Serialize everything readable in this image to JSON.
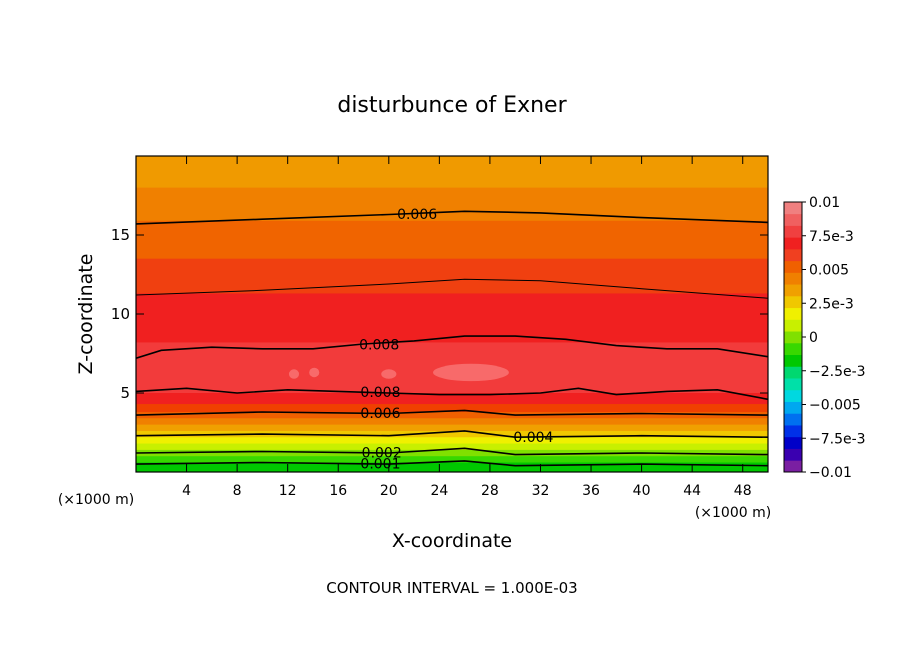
{
  "chart_data": {
    "type": "heatmap",
    "title": "disturbunce of Exner",
    "xlabel": "X-coordinate",
    "ylabel": "Z-coordinate",
    "x_unit_left": "(×1000 m)",
    "x_unit_right": "(×1000 m)",
    "footer": "CONTOUR INTERVAL = 1.000E-03",
    "xlim": [
      0,
      50
    ],
    "ylim": [
      0,
      20
    ],
    "x_ticks": [
      {
        "value": 4,
        "label": "4"
      },
      {
        "value": 8,
        "label": "8"
      },
      {
        "value": 12,
        "label": "12"
      },
      {
        "value": 16,
        "label": "16"
      },
      {
        "value": 20,
        "label": "20"
      },
      {
        "value": 24,
        "label": "24"
      },
      {
        "value": 28,
        "label": "28"
      },
      {
        "value": 32,
        "label": "32"
      },
      {
        "value": 36,
        "label": "36"
      },
      {
        "value": 40,
        "label": "40"
      },
      {
        "value": 44,
        "label": "44"
      },
      {
        "value": 48,
        "label": "48"
      }
    ],
    "y_ticks": [
      {
        "value": 5,
        "label": "5"
      },
      {
        "value": 10,
        "label": "10"
      },
      {
        "value": 15,
        "label": "15"
      }
    ],
    "colorbar": {
      "range": [
        -0.01,
        0.01
      ],
      "labels": [
        {
          "value": 0.01,
          "label": "0.01"
        },
        {
          "value": 0.0075,
          "label": "7.5e-3"
        },
        {
          "value": 0.005,
          "label": "0.005"
        },
        {
          "value": 0.0025,
          "label": "2.5e-3"
        },
        {
          "value": 0,
          "label": "0"
        },
        {
          "value": -0.0025,
          "label": "−2.5e-3"
        },
        {
          "value": -0.005,
          "label": "−0.005"
        },
        {
          "value": -0.0075,
          "label": "−7.5e-3"
        },
        {
          "value": -0.01,
          "label": "−0.01"
        }
      ],
      "colors": [
        "#7a1fa2",
        "#3a00b0",
        "#0000c8",
        "#0030e8",
        "#0070f0",
        "#00a8f0",
        "#00d8e0",
        "#00e0a8",
        "#00d870",
        "#00c800",
        "#38d800",
        "#80e000",
        "#c8f000",
        "#f0f000",
        "#f0c800",
        "#f0a000",
        "#f08000",
        "#f06000",
        "#f04020",
        "#f02020",
        "#f04040",
        "#f06060",
        "#f08080"
      ]
    },
    "series": [
      {
        "level": 0.006,
        "label": "0.006",
        "label_x": 20.5,
        "points": [
          [
            0,
            15.7
          ],
          [
            10,
            16.0
          ],
          [
            20,
            16.3
          ],
          [
            26,
            16.5
          ],
          [
            32,
            16.4
          ],
          [
            40,
            16.1
          ],
          [
            50,
            15.8
          ]
        ]
      },
      {
        "level": 0.007,
        "label": "",
        "points": [
          [
            0,
            11.2
          ],
          [
            10,
            11.5
          ],
          [
            20,
            11.9
          ],
          [
            26,
            12.2
          ],
          [
            32,
            12.1
          ],
          [
            40,
            11.6
          ],
          [
            50,
            11.0
          ]
        ]
      },
      {
        "level": 0.008,
        "label": "0.008",
        "label_x": 17.5,
        "points": [
          [
            0,
            7.2
          ],
          [
            2,
            7.7
          ],
          [
            6,
            7.9
          ],
          [
            10,
            7.8
          ],
          [
            14,
            7.8
          ],
          [
            18,
            8.1
          ],
          [
            22,
            8.3
          ],
          [
            26,
            8.6
          ],
          [
            30,
            8.6
          ],
          [
            34,
            8.4
          ],
          [
            38,
            8.0
          ],
          [
            42,
            7.8
          ],
          [
            46,
            7.8
          ],
          [
            50,
            7.3
          ]
        ]
      },
      {
        "level": 0.008,
        "label": "0.008",
        "label_x": 17.6,
        "points": [
          [
            0,
            5.1
          ],
          [
            4,
            5.3
          ],
          [
            8,
            5.0
          ],
          [
            12,
            5.2
          ],
          [
            16,
            5.1
          ],
          [
            20,
            5.0
          ],
          [
            24,
            4.9
          ],
          [
            28,
            4.9
          ],
          [
            32,
            5.0
          ],
          [
            35,
            5.3
          ],
          [
            38,
            4.9
          ],
          [
            42,
            5.1
          ],
          [
            46,
            5.2
          ],
          [
            50,
            4.6
          ]
        ]
      },
      {
        "level": 0.006,
        "label": "0.006",
        "label_x": 17.6,
        "points": [
          [
            0,
            3.6
          ],
          [
            10,
            3.8
          ],
          [
            20,
            3.7
          ],
          [
            26,
            3.9
          ],
          [
            30,
            3.6
          ],
          [
            40,
            3.7
          ],
          [
            50,
            3.6
          ]
        ]
      },
      {
        "level": 0.004,
        "label": "0.004",
        "label_x": 29.7,
        "points": [
          [
            0,
            2.3
          ],
          [
            10,
            2.4
          ],
          [
            20,
            2.3
          ],
          [
            26,
            2.6
          ],
          [
            30,
            2.2
          ],
          [
            40,
            2.3
          ],
          [
            50,
            2.2
          ]
        ]
      },
      {
        "level": 0.002,
        "label": "0.002",
        "label_x": 17.7,
        "points": [
          [
            0,
            1.2
          ],
          [
            10,
            1.3
          ],
          [
            20,
            1.2
          ],
          [
            26,
            1.5
          ],
          [
            30,
            1.1
          ],
          [
            40,
            1.2
          ],
          [
            50,
            1.1
          ]
        ]
      },
      {
        "level": 0.001,
        "label": "0.001",
        "label_x": 17.6,
        "points": [
          [
            0,
            0.5
          ],
          [
            10,
            0.6
          ],
          [
            20,
            0.5
          ],
          [
            26,
            0.7
          ],
          [
            30,
            0.4
          ],
          [
            40,
            0.5
          ],
          [
            50,
            0.4
          ]
        ]
      }
    ],
    "bands": [
      {
        "from": 18.0,
        "to": 20.0,
        "color": "#f09a00"
      },
      {
        "from": 15.9,
        "to": 18.0,
        "color": "#f08000"
      },
      {
        "from": 13.5,
        "to": 15.9,
        "color": "#f06400"
      },
      {
        "from": 11.3,
        "to": 13.5,
        "color": "#f04010"
      },
      {
        "from": 8.2,
        "to": 11.3,
        "color": "#f02020"
      },
      {
        "from": 5.0,
        "to": 8.2,
        "color": "#f23b3b"
      },
      {
        "from": 4.3,
        "to": 5.0,
        "color": "#f02020"
      },
      {
        "from": 3.8,
        "to": 4.3,
        "color": "#f04000"
      },
      {
        "from": 3.4,
        "to": 3.8,
        "color": "#f06000"
      },
      {
        "from": 3.0,
        "to": 3.4,
        "color": "#f08000"
      },
      {
        "from": 2.6,
        "to": 3.0,
        "color": "#f0a000"
      },
      {
        "from": 2.2,
        "to": 2.6,
        "color": "#f0c800"
      },
      {
        "from": 1.8,
        "to": 2.2,
        "color": "#f0f000"
      },
      {
        "from": 1.4,
        "to": 1.8,
        "color": "#c8f000"
      },
      {
        "from": 1.0,
        "to": 1.4,
        "color": "#80e000"
      },
      {
        "from": 0.6,
        "to": 1.0,
        "color": "#38d800"
      },
      {
        "from": 0.0,
        "to": 0.6,
        "color": "#00c800"
      }
    ]
  }
}
